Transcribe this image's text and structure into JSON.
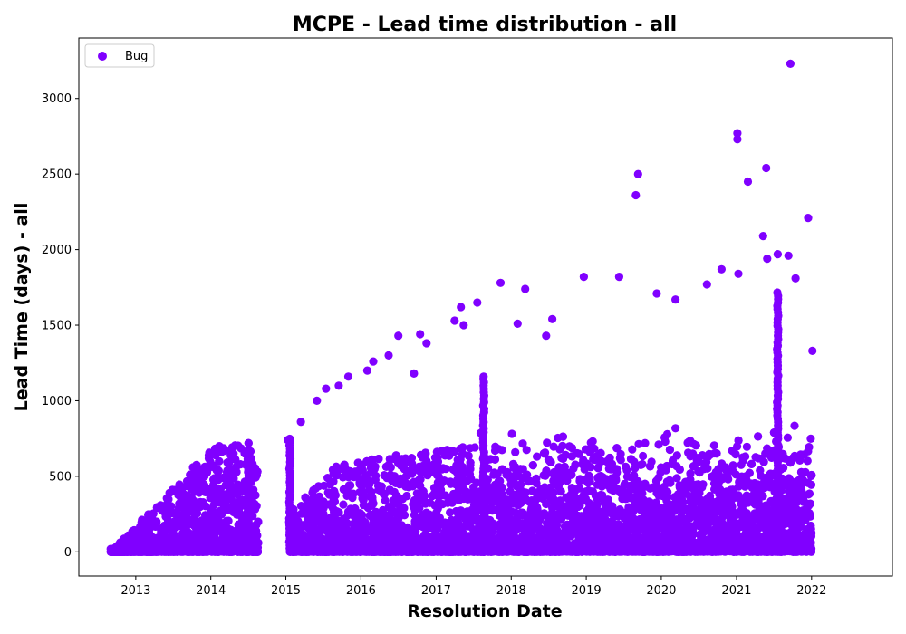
{
  "chart_data": {
    "type": "scatter",
    "title": "MCPE - Lead time distribution - all",
    "xlabel": "Resolution Date",
    "ylabel": "Lead Time (days) - all",
    "xlim": [
      "2012-03-30",
      "2023-01-29"
    ],
    "ylim": [
      -160,
      3400
    ],
    "x_ticks": [
      "2013",
      "2014",
      "2015",
      "2016",
      "2017",
      "2018",
      "2019",
      "2020",
      "2021",
      "2022"
    ],
    "y_ticks": [
      0,
      500,
      1000,
      1500,
      2000,
      2500,
      3000
    ],
    "grid": false,
    "legend": {
      "position": "top-left",
      "entries": [
        "Bug"
      ]
    },
    "marker_color": "#8000ff",
    "series": [
      {
        "name": "Bug",
        "points": [
          [
            "2013-12-01",
            500
          ],
          [
            "2014-03-01",
            490
          ],
          [
            "2014-07-01",
            670
          ],
          [
            "2014-07-15",
            620
          ],
          [
            "2015-01-10",
            740
          ],
          [
            "2015-03-15",
            860
          ],
          [
            "2015-06-01",
            1000
          ],
          [
            "2015-07-15",
            1080
          ],
          [
            "2015-09-15",
            1100
          ],
          [
            "2015-11-01",
            1160
          ],
          [
            "2016-02-01",
            1200
          ],
          [
            "2016-03-01",
            1260
          ],
          [
            "2016-05-15",
            1300
          ],
          [
            "2016-07-01",
            1430
          ],
          [
            "2016-09-15",
            1180
          ],
          [
            "2016-10-15",
            1440
          ],
          [
            "2016-11-15",
            1380
          ],
          [
            "2017-04-01",
            1530
          ],
          [
            "2017-05-01",
            1620
          ],
          [
            "2017-05-15",
            1500
          ],
          [
            "2017-07-20",
            1650
          ],
          [
            "2017-08-20",
            1160
          ],
          [
            "2017-11-10",
            1780
          ],
          [
            "2018-02-01",
            1510
          ],
          [
            "2018-03-10",
            1740
          ],
          [
            "2018-06-20",
            1430
          ],
          [
            "2018-07-20",
            1540
          ],
          [
            "2018-12-20",
            1820
          ],
          [
            "2019-06-10",
            1820
          ],
          [
            "2019-08-30",
            2360
          ],
          [
            "2019-09-10",
            2500
          ],
          [
            "2019-12-10",
            1710
          ],
          [
            "2020-03-10",
            1670
          ],
          [
            "2020-08-10",
            1770
          ],
          [
            "2020-10-20",
            1870
          ],
          [
            "2021-01-05",
            2770
          ],
          [
            "2021-01-05",
            2730
          ],
          [
            "2021-01-10",
            1840
          ],
          [
            "2021-02-25",
            2450
          ],
          [
            "2021-05-10",
            2090
          ],
          [
            "2021-05-25",
            2540
          ],
          [
            "2021-05-30",
            1940
          ],
          [
            "2021-07-20",
            1970
          ],
          [
            "2021-09-10",
            1960
          ],
          [
            "2021-09-20",
            3230
          ],
          [
            "2021-10-15",
            1810
          ],
          [
            "2021-12-15",
            2210
          ],
          [
            "2022-01-05",
            1330
          ]
        ]
      }
    ]
  }
}
